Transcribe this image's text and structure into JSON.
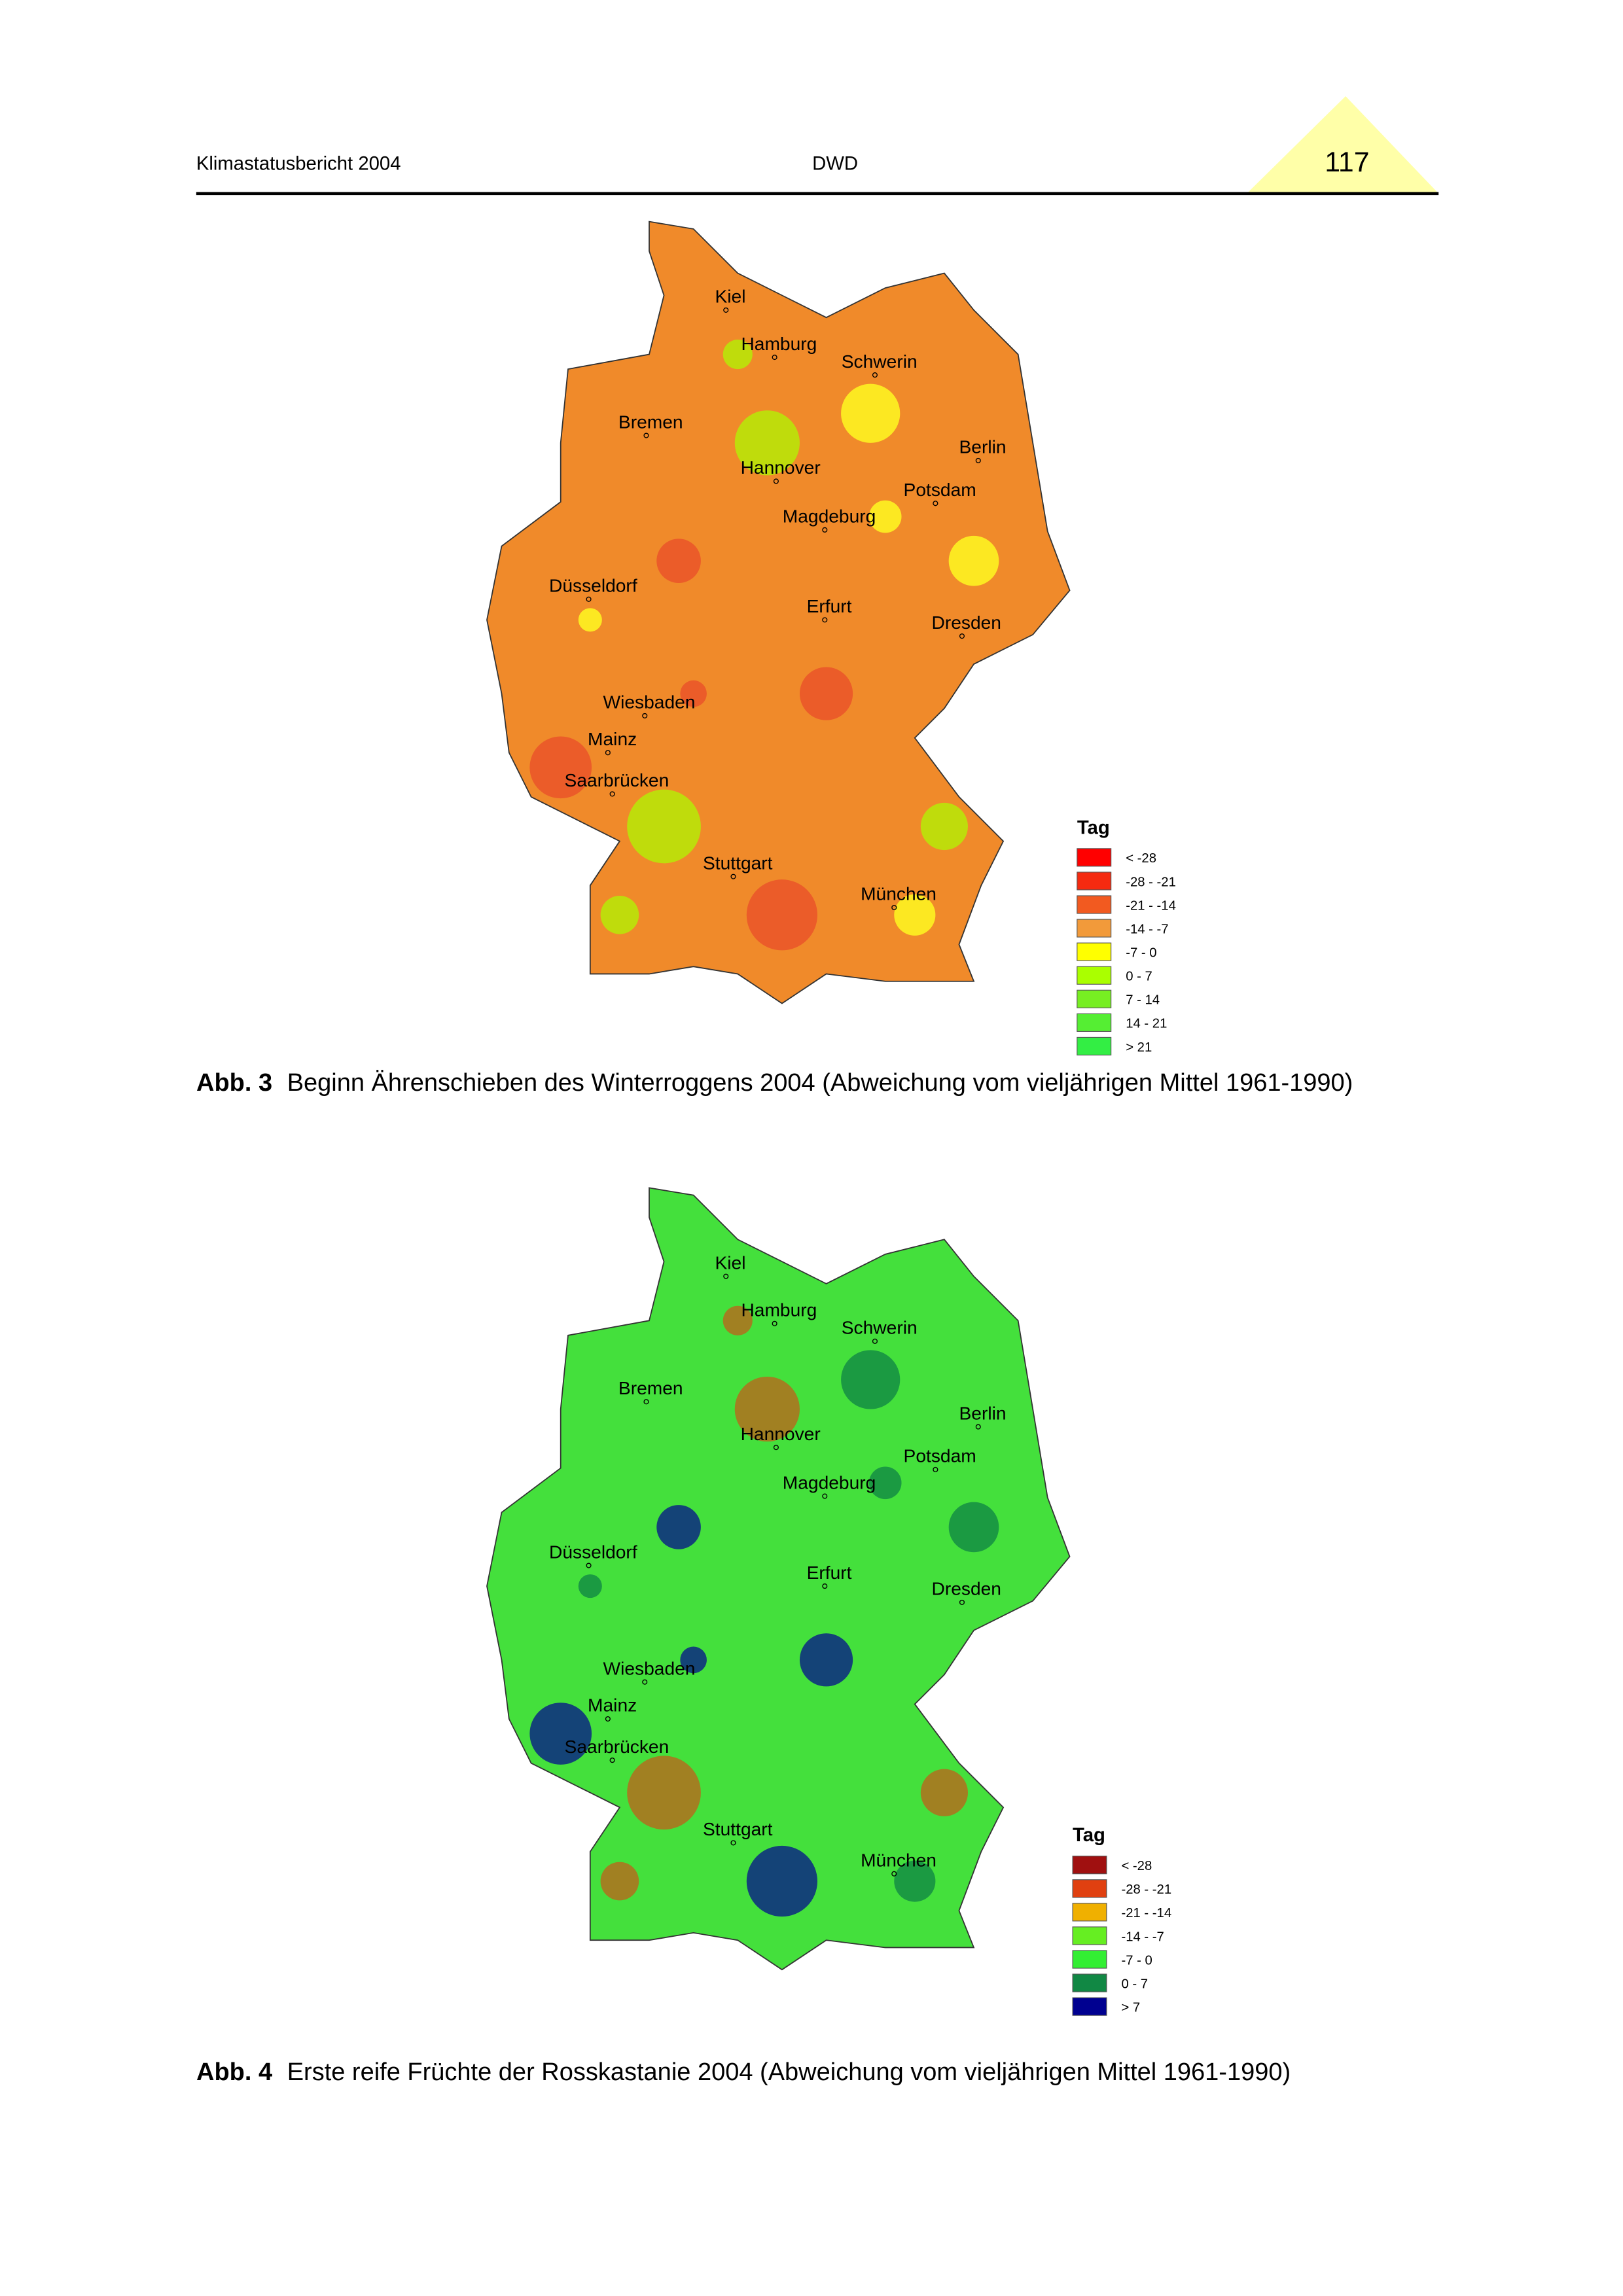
{
  "header": {
    "left": "Klimastatusbericht 2004",
    "center": "DWD",
    "page_number": "117"
  },
  "figures": [
    {
      "cities": [
        "Kiel",
        "Hamburg",
        "Schwerin",
        "Bremen",
        "Berlin",
        "Hannover",
        "Potsdam",
        "Magdeburg",
        "Düsseldorf",
        "Erfurt",
        "Dresden",
        "Wiesbaden",
        "Mainz",
        "Saarbrücken",
        "Stuttgart",
        "München"
      ],
      "legend": {
        "title": "Tag",
        "items": [
          {
            "label": "< -28",
            "color": "#ff0000"
          },
          {
            "label": "-28 - -21",
            "color": "#f52a10"
          },
          {
            "label": "-21 - -14",
            "color": "#f25a20"
          },
          {
            "label": "-14 - -7",
            "color": "#f29a3a"
          },
          {
            "label": "-7 - 0",
            "color": "#ffff00"
          },
          {
            "label": "0 - 7",
            "color": "#aaff00"
          },
          {
            "label": "7 - 14",
            "color": "#77ee22"
          },
          {
            "label": "14 - 21",
            "color": "#55ee33"
          },
          {
            "label": "> 21",
            "color": "#33ee44"
          }
        ]
      },
      "caption": {
        "label": "Abb. 3",
        "text": "Beginn Ährenschieben des Winterroggens 2004 (Abweichung vom vieljährigen Mittel 1961-1990)"
      }
    },
    {
      "cities": [
        "Kiel",
        "Hamburg",
        "Schwerin",
        "Bremen",
        "Berlin",
        "Hannover",
        "Potsdam",
        "Magdeburg",
        "Düsseldorf",
        "Erfurt",
        "Dresden",
        "Wiesbaden",
        "Mainz",
        "Saarbrücken",
        "Stuttgart",
        "München"
      ],
      "legend": {
        "title": "Tag",
        "items": [
          {
            "label": "< -28",
            "color": "#a01010"
          },
          {
            "label": "-28 - -21",
            "color": "#e04010"
          },
          {
            "label": "-21 - -14",
            "color": "#f0b000"
          },
          {
            "label": "-14 - -7",
            "color": "#66ee22"
          },
          {
            "label": "-7 - 0",
            "color": "#33ee33"
          },
          {
            "label": "0 - 7",
            "color": "#118844"
          },
          {
            "label": "> 7",
            "color": "#000090"
          }
        ]
      },
      "caption": {
        "label": "Abb. 4",
        "text": "Erste reife Früchte der Rosskastanie 2004 (Abweichung vom vieljährigen Mittel 1961-1990)"
      }
    }
  ]
}
